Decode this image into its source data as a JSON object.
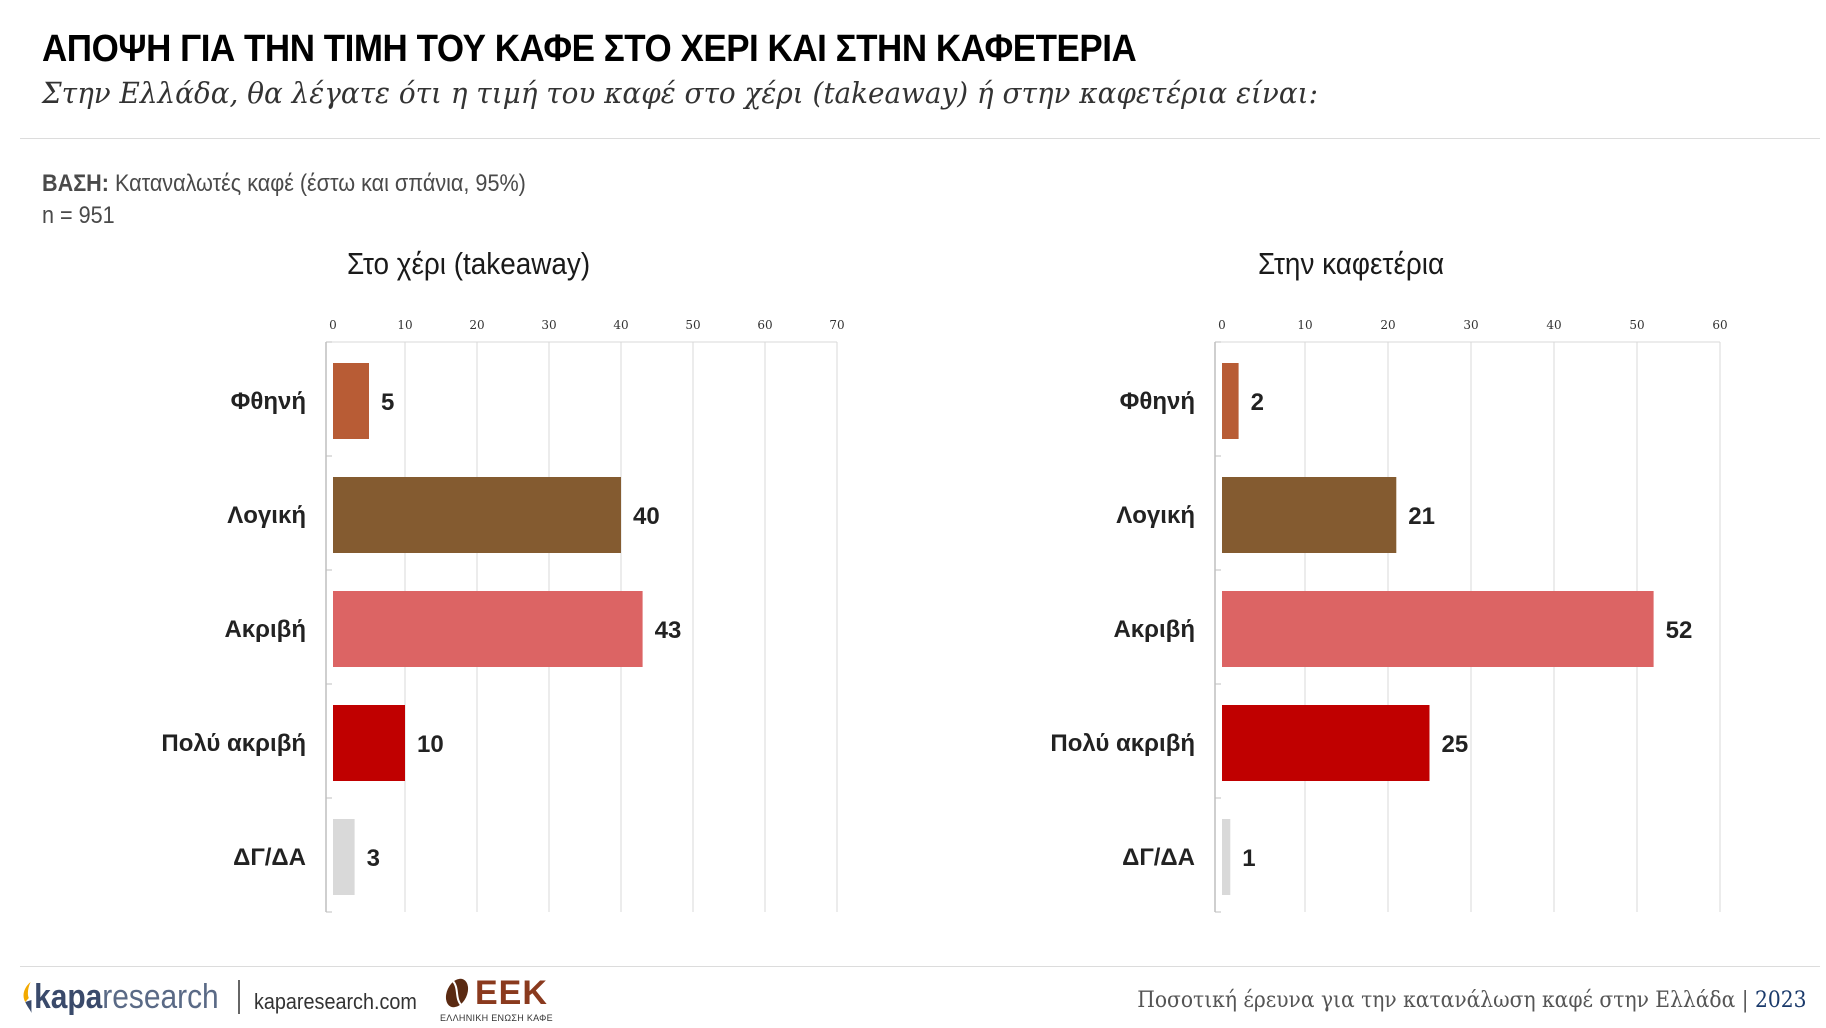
{
  "header": {
    "title": "ΑΠΟΨΗ ΓΙΑ ΤΗΝ ΤΙΜΗ ΤΟΥ ΚΑΦΕ ΣΤΟ ΧΕΡΙ ΚΑΙ ΣΤΗΝ ΚΑΦΕΤΕΡΙΑ",
    "subtitle": "Στην Ελλάδα, θα λέγατε ότι η τιμή του καφέ στο χέρι (takeaway) ή στην καφετέρια είναι:"
  },
  "base": {
    "label": "ΒΑΣΗ:",
    "text": "Καταναλωτές καφέ (έστω και σπάνια, 95%)",
    "n": "n = 951"
  },
  "colors": {
    "Φθηνή": "#b85c35",
    "Λογική": "#845b30",
    "Ακριβή": "#dc6464",
    "Πολύ ακριβή": "#c00000",
    "ΔΓ/ΔΑ": "#d9d9d9",
    "grid": "#d9d9d9",
    "axis": "#bfbfbf"
  },
  "chart_data": [
    {
      "type": "bar",
      "orientation": "horizontal",
      "title": "Στο χέρι (takeaway)",
      "categories": [
        "Φθηνή",
        "Λογική",
        "Ακριβή",
        "Πολύ ακριβή",
        "ΔΓ/ΔΑ"
      ],
      "values": [
        5,
        40,
        43,
        10,
        3
      ],
      "xlim": [
        0,
        70
      ],
      "ticks": [
        0,
        10,
        20,
        30,
        40,
        50,
        60,
        70
      ],
      "tick_position": "top",
      "grid": true
    },
    {
      "type": "bar",
      "orientation": "horizontal",
      "title": "Στην καφετέρια",
      "categories": [
        "Φθηνή",
        "Λογική",
        "Ακριβή",
        "Πολύ ακριβή",
        "ΔΓ/ΔΑ"
      ],
      "values": [
        2,
        21,
        52,
        25,
        1
      ],
      "xlim": [
        0,
        60
      ],
      "ticks": [
        0,
        10,
        20,
        30,
        40,
        50,
        60
      ],
      "tick_position": "top",
      "grid": true
    }
  ],
  "footer": {
    "brand_bold": "kapa",
    "brand_light": "research",
    "website": "kaparesearch.com",
    "partner_logo": "ΕΕΚ",
    "partner_sub": "ΕΛΛΗΝΙΚΗ ΕΝΩΣΗ ΚΑΦΕ",
    "study": "Ποσοτική έρευνα για την κατανάλωση καφέ στην Ελλάδα |",
    "year": "2023"
  }
}
